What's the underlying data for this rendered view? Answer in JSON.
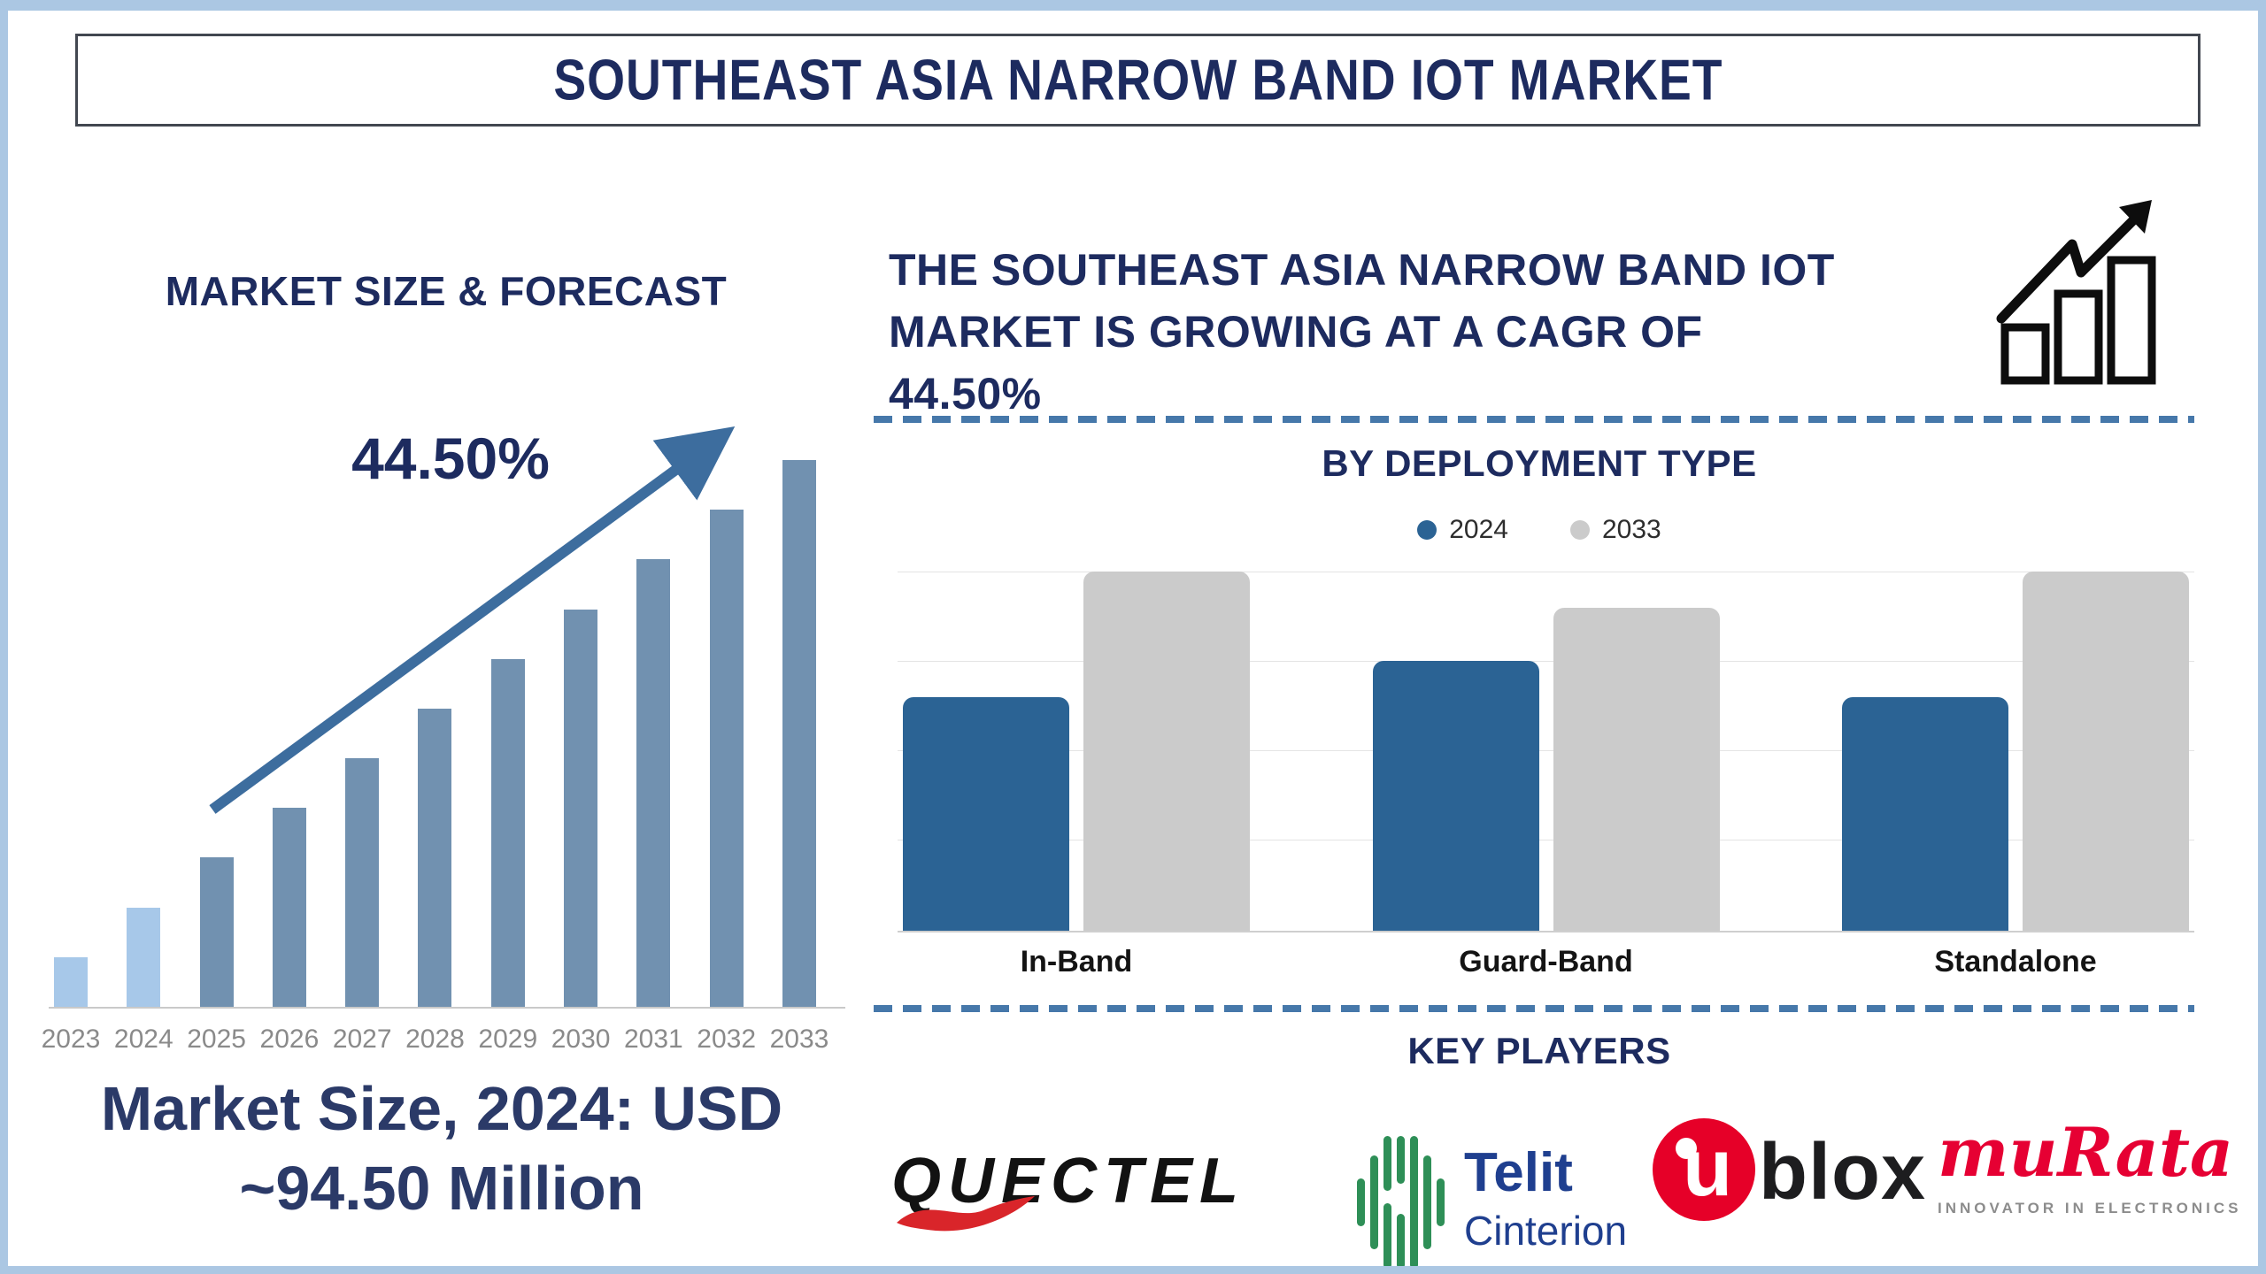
{
  "title": "SOUTHEAST ASIA NARROW BAND IOT MARKET",
  "left_section": {
    "heading": "MARKET SIZE & FORECAST",
    "cagr_label": "44.50%",
    "note_line1": "Market Size, 2024: USD",
    "note_line2": "~94.50 Million"
  },
  "right_section": {
    "headline_line1": "THE SOUTHEAST ASIA NARROW BAND IOT",
    "headline_line2": "MARKET IS GROWING AT A CAGR OF",
    "headline_line3": "44.50%",
    "deployment_title": "BY DEPLOYMENT TYPE",
    "legend": [
      {
        "label": "2024",
        "color": "#2b6394"
      },
      {
        "label": "2033",
        "color": "#cbcbcb"
      }
    ],
    "key_players_title": "KEY PLAYERS",
    "players": [
      {
        "name": "QUECTEL"
      },
      {
        "name_line1": "Telit",
        "name_line2": "Cinterion"
      },
      {
        "name_u": "u",
        "name_rest": "blox"
      },
      {
        "name": "muRata",
        "tagline": "INNOVATOR IN ELECTRONICS"
      }
    ]
  },
  "chart_data": [
    {
      "type": "bar",
      "title": "MARKET SIZE & FORECAST",
      "categories": [
        "2023",
        "2024",
        "2025",
        "2026",
        "2027",
        "2028",
        "2029",
        "2030",
        "2031",
        "2032",
        "2033"
      ],
      "values": [
        1,
        2,
        3,
        4,
        5,
        6,
        7,
        8,
        9,
        10,
        11
      ],
      "value_units": "relative (no numeric axis shown; bars rise linearly)",
      "stated_value": "Market Size 2024 = USD ~94.50 Million",
      "cagr": "44.50%",
      "xlabel": "",
      "ylabel": "",
      "ylim": [
        0,
        11
      ],
      "grid": false,
      "highlight_count": 2,
      "colors": {
        "actual": "#a7c8e9",
        "forecast": "#7191b0",
        "trend_arrow": "#3d6d9e"
      }
    },
    {
      "type": "bar",
      "title": "BY DEPLOYMENT TYPE",
      "categories": [
        "In-Band",
        "Guard-Band",
        "Standalone"
      ],
      "series": [
        {
          "name": "2024",
          "color": "#2b6394",
          "values": [
            2.6,
            3.0,
            2.6
          ]
        },
        {
          "name": "2033",
          "color": "#cbcbcb",
          "values": [
            4.0,
            3.6,
            4.0
          ]
        }
      ],
      "value_units": "relative (no numeric axis labels shown)",
      "ylim": [
        0,
        4
      ],
      "grid": true,
      "legend_position": "top"
    }
  ]
}
